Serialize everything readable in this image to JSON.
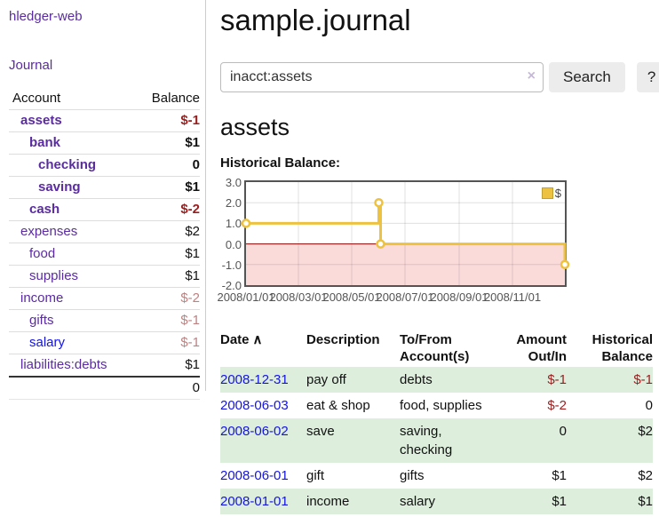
{
  "app": {
    "brand": "hledger-web",
    "nav_journal": "Journal"
  },
  "sidebar": {
    "headers": {
      "account": "Account",
      "balance": "Balance"
    },
    "accounts": [
      {
        "name": "assets",
        "balance": "$-1",
        "depth": 1,
        "bold": true
      },
      {
        "name": "bank",
        "balance": "$1",
        "depth": 2,
        "bold": true
      },
      {
        "name": "checking",
        "balance": "0",
        "depth": 3,
        "bold": true
      },
      {
        "name": "saving",
        "balance": "$1",
        "depth": 3,
        "bold": true
      },
      {
        "name": "cash",
        "balance": "$-2",
        "depth": 2,
        "bold": true
      },
      {
        "name": "expenses",
        "balance": "$2",
        "depth": 1,
        "bold": false
      },
      {
        "name": "food",
        "balance": "$1",
        "depth": 2,
        "bold": false
      },
      {
        "name": "supplies",
        "balance": "$1",
        "depth": 2,
        "bold": false
      },
      {
        "name": "income",
        "balance": "$-2",
        "depth": 1,
        "bold": false
      },
      {
        "name": "gifts",
        "balance": "$-1",
        "depth": 2,
        "bold": false
      },
      {
        "name": "salary",
        "balance": "$-1",
        "depth": 2,
        "bold": false,
        "link": "blue"
      },
      {
        "name": "liabilities:debts",
        "balance": "$1",
        "depth": 1,
        "bold": false
      }
    ],
    "total": "0"
  },
  "header": {
    "title": "sample.journal"
  },
  "search": {
    "value": "inacct:assets",
    "clear_icon": "×",
    "button_label": "Search",
    "help_label": "?"
  },
  "account_page": {
    "heading": "assets",
    "chart_label": "Historical Balance:"
  },
  "chart_data": {
    "type": "line",
    "step": true,
    "legend": "$",
    "legend_position": "top-right",
    "series": [
      {
        "name": "$",
        "color": "#edc240",
        "points": [
          {
            "date": "2008-01-01",
            "value": 1
          },
          {
            "date": "2008-06-01",
            "value": 2
          },
          {
            "date": "2008-06-03",
            "value": 0
          },
          {
            "date": "2008-12-31",
            "value": -1
          }
        ]
      }
    ],
    "x_range": [
      "2008-01-01",
      "2008-12-31"
    ],
    "ylim": [
      -2,
      3
    ],
    "yticks": [
      "3.0",
      "2.0",
      "1.0",
      "0.0",
      "-1.0",
      "-2.0"
    ],
    "xticks": [
      {
        "label": "2008/01/01",
        "date": "2008-01-01"
      },
      {
        "label": "2008/03/01",
        "date": "2008-03-01"
      },
      {
        "label": "2008/05/01",
        "date": "2008-05-01"
      },
      {
        "label": "2008/07/01",
        "date": "2008-07-01"
      },
      {
        "label": "2008/09/01",
        "date": "2008-09-01"
      },
      {
        "label": "2008/11/01",
        "date": "2008-11-01"
      }
    ],
    "grid": true,
    "zero_line_color": "#8b0000",
    "negative_region_fill": "#fbdada"
  },
  "register": {
    "columns": [
      {
        "line1": "Date",
        "sort_icon": "∧"
      },
      {
        "line1": "Description"
      },
      {
        "line1": "To/From",
        "line2": "Account(s)"
      },
      {
        "line1": "Amount",
        "line2": "Out/In"
      },
      {
        "line1": "Historical",
        "line2": "Balance"
      }
    ],
    "rows": [
      {
        "date": "2008-12-31",
        "description": "pay off",
        "accounts": "debts",
        "amount": "$-1",
        "balance": "$-1"
      },
      {
        "date": "2008-06-03",
        "description": "eat & shop",
        "accounts": "food, supplies",
        "amount": "$-2",
        "balance": "0"
      },
      {
        "date": "2008-06-02",
        "description": "save",
        "accounts": "saving, checking",
        "amount": "0",
        "balance": "$2"
      },
      {
        "date": "2008-06-01",
        "description": "gift",
        "accounts": "gifts",
        "amount": "$1",
        "balance": "$2"
      },
      {
        "date": "2008-01-01",
        "description": "income",
        "accounts": "salary",
        "amount": "$1",
        "balance": "$1"
      }
    ]
  },
  "colors": {
    "link_purple": "#5a2ca0",
    "link_blue": "#1414e0",
    "negative_strong": "#9d1d1d",
    "negative_muted": "#bd8181",
    "row_green": "#ddeedd",
    "series_gold": "#edc240",
    "chart_negative_fill": "#fbdada",
    "zero_line": "#8b0000",
    "button_gray": "#ececec"
  }
}
